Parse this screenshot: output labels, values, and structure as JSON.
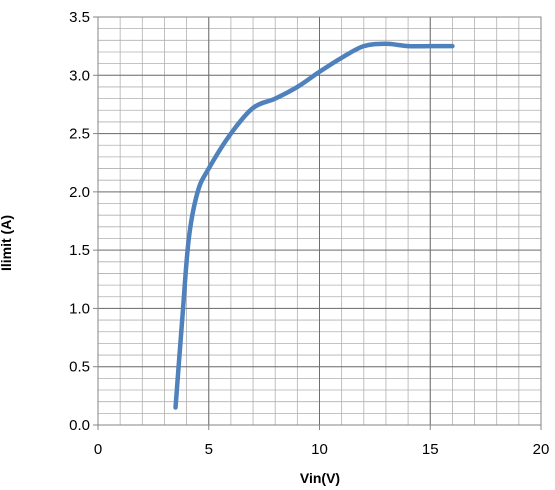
{
  "chart_data": {
    "type": "line",
    "title": "",
    "xlabel": "Vin(V)",
    "ylabel": "Ilimit (A)",
    "xlim": [
      0,
      20
    ],
    "ylim": [
      0,
      3.5
    ],
    "x_ticks": [
      "0",
      "5",
      "10",
      "15",
      "20"
    ],
    "y_ticks": [
      "0.0",
      "0.5",
      "1.0",
      "1.5",
      "2.0",
      "2.5",
      "3.0",
      "3.5"
    ],
    "grid": true,
    "legend": "none",
    "series": [
      {
        "name": "",
        "color": "#4f81bd",
        "points": [
          [
            3.5,
            0.15
          ],
          [
            3.8,
            0.9
          ],
          [
            4.1,
            1.6
          ],
          [
            4.5,
            2.0
          ],
          [
            5.0,
            2.2
          ],
          [
            6.0,
            2.5
          ],
          [
            7.0,
            2.72
          ],
          [
            8.0,
            2.8
          ],
          [
            9.0,
            2.9
          ],
          [
            10.0,
            3.03
          ],
          [
            11.0,
            3.15
          ],
          [
            12.0,
            3.25
          ],
          [
            13.0,
            3.27
          ],
          [
            14.0,
            3.25
          ],
          [
            15.0,
            3.25
          ],
          [
            16.0,
            3.25
          ]
        ]
      }
    ]
  }
}
